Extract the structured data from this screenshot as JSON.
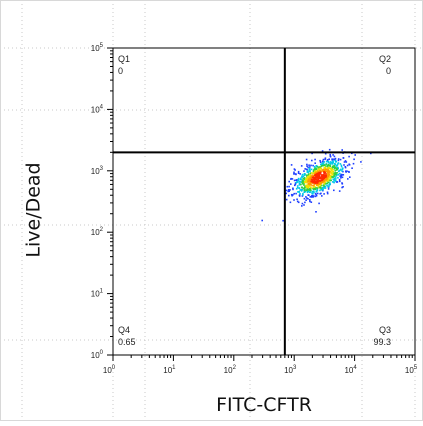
{
  "chart_data": {
    "type": "scatter",
    "title": "",
    "xlabel": "FITC-CFTR",
    "ylabel": "Live/Dead",
    "x_scale": "log",
    "y_scale": "log",
    "xlim": [
      1,
      100000
    ],
    "ylim": [
      1,
      100000
    ],
    "x_tick_exponents": [
      "0",
      "1",
      "2",
      "3",
      "4",
      "5"
    ],
    "y_tick_exponents": [
      "0",
      "1",
      "2",
      "3",
      "4",
      "5"
    ],
    "gate": {
      "x": 700,
      "y": 2000
    },
    "quadrants": [
      {
        "name": "Q1",
        "value": "0",
        "position": "top-left"
      },
      {
        "name": "Q2",
        "value": "0",
        "position": "top-right"
      },
      {
        "name": "Q3",
        "value": "99.3",
        "position": "bottom-right"
      },
      {
        "name": "Q4",
        "value": "0.65",
        "position": "bottom-left"
      }
    ],
    "population": {
      "center": [
        2500,
        800
      ],
      "log_spread": [
        0.22,
        0.16
      ],
      "colormap": "density (blue-cyan-green-yellow-red)"
    }
  },
  "colors": {
    "accent_low": "#1f3fff",
    "accent_high": "#ff2a00"
  }
}
